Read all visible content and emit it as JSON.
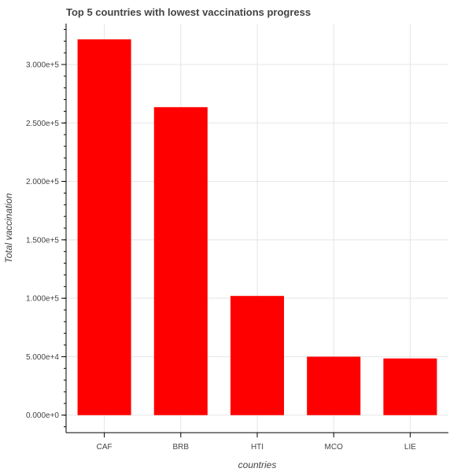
{
  "chart_data": {
    "type": "bar",
    "title": "Top 5 countries with lowest vaccinations progress",
    "xlabel": "countries",
    "ylabel": "Total vaccination",
    "categories": [
      "CAF",
      "BRB",
      "HTI",
      "MCO",
      "LIE"
    ],
    "values": [
      321500,
      263500,
      102000,
      50000,
      48500
    ],
    "ylim": [
      -15000,
      335000
    ],
    "y_ticks": [
      0,
      50000,
      100000,
      150000,
      200000,
      250000,
      300000
    ],
    "y_tick_labels": [
      "0.000e+0",
      "5.000e+4",
      "1.000e+5",
      "1.500e+5",
      "2.000e+5",
      "2.500e+5",
      "3.000e+5"
    ],
    "bar_color": "#ff0000",
    "grid": true
  }
}
